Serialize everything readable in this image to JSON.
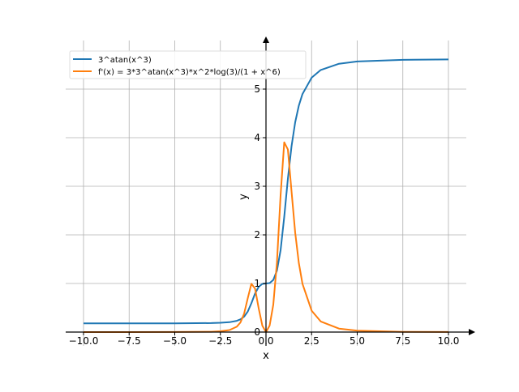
{
  "chart_data": {
    "type": "line",
    "title": "",
    "xlabel": "x",
    "ylabel": "y",
    "xlim": [
      -11,
      11
    ],
    "ylim": [
      -0.29,
      5.87
    ],
    "grid": true,
    "legend_position": "top-left",
    "x_ticks": [
      "−10.0",
      "−7.5",
      "−5.0",
      "−2.5",
      "0.0",
      "2.5",
      "5.0",
      "7.5",
      "10.0"
    ],
    "x_tick_values": [
      -10,
      -7.5,
      -5,
      -2.5,
      0,
      2.5,
      5,
      7.5,
      10
    ],
    "y_ticks": [
      "0",
      "1",
      "2",
      "3",
      "4",
      "5"
    ],
    "y_tick_values": [
      0,
      1,
      2,
      3,
      4,
      5
    ],
    "series": [
      {
        "name": "3^atan(x^3)",
        "color": "#1f77b4",
        "x": [
          -10,
          -7.5,
          -5,
          -3,
          -2.5,
          -2,
          -1.6,
          -1.4,
          -1.2,
          -1.0,
          -0.8,
          -0.6,
          -0.4,
          -0.2,
          0,
          0.2,
          0.4,
          0.6,
          0.8,
          1.0,
          1.2,
          1.4,
          1.6,
          1.8,
          2.0,
          2.5,
          3,
          4,
          5,
          7.5,
          10
        ],
        "y": [
          0.178,
          0.1785,
          0.1796,
          0.1855,
          0.191,
          0.204,
          0.2316,
          0.2615,
          0.317,
          0.422,
          0.594,
          0.7916,
          0.932,
          0.991,
          1,
          1.0088,
          1.0727,
          1.2634,
          1.683,
          2.37,
          3.155,
          3.824,
          4.317,
          4.66,
          4.899,
          5.235,
          5.393,
          5.521,
          5.568,
          5.601,
          5.61
        ]
      },
      {
        "name": "f'(x) = 3*3^atan(x^3)*x^2*log(3)/(1 + x^6)",
        "color": "#ff7f0e",
        "x": [
          -10,
          -7.5,
          -5,
          -3,
          -2.5,
          -2,
          -1.6,
          -1.4,
          -1.2,
          -1.0,
          -0.8,
          -0.6,
          -0.4,
          -0.2,
          0,
          0.2,
          0.4,
          0.6,
          0.8,
          1.0,
          1.2,
          1.4,
          1.6,
          1.8,
          2.0,
          2.5,
          3,
          4,
          5,
          7.5,
          10
        ],
        "y": [
          0,
          0.0002,
          0.001,
          0.0075,
          0.016,
          0.0414,
          0.11,
          0.198,
          0.377,
          0.695,
          0.993,
          0.897,
          0.489,
          0.131,
          0,
          0.133,
          0.563,
          1.432,
          2.813,
          3.905,
          3.757,
          2.896,
          2.049,
          1.421,
          0.994,
          0.44,
          0.219,
          0.0711,
          0.0294,
          0.0058,
          0.0018
        ]
      }
    ]
  }
}
